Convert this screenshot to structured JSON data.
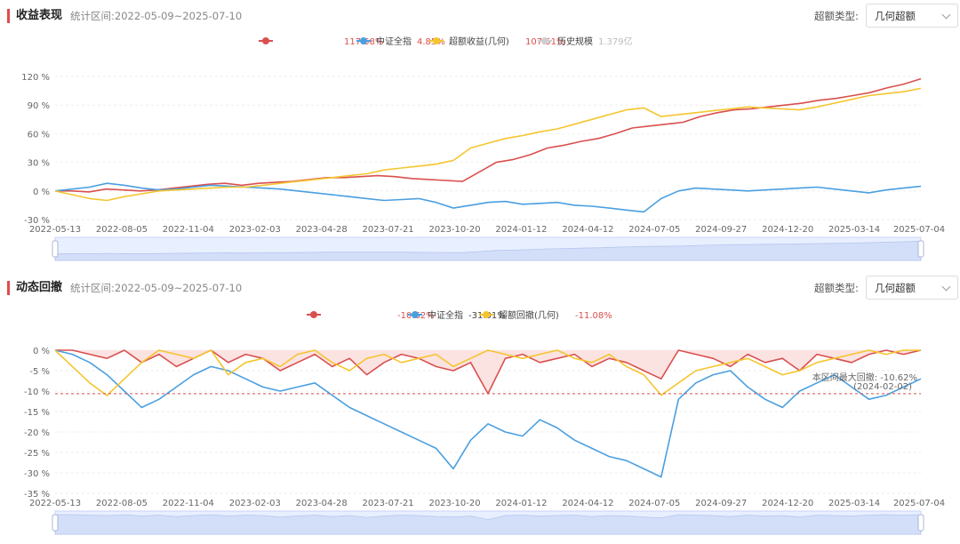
{
  "colors": {
    "fund": "#d9504e",
    "index": "#4a9fe0",
    "excess": "#f5c52e",
    "scale": "#cfcfcf",
    "accent": "#e14b4b"
  },
  "returns_panel": {
    "title": "收益表现",
    "period_label": "统计区间:",
    "period_value": "2022-05-09~2025-07-10",
    "excess_type_label": "超额类型:",
    "excess_type_value": "几何超额",
    "legend": [
      {
        "name": "",
        "value": "117.58%",
        "color": "#d9504e"
      },
      {
        "name": "中证全指",
        "value": "4.85%",
        "color": "#4a9fe0"
      },
      {
        "name": "超额收益(几何)",
        "value": "107.51%",
        "color": "#f5c52e"
      },
      {
        "name": "历史规模",
        "value": "1.379亿",
        "color": "#cfcfcf"
      }
    ]
  },
  "drawdown_panel": {
    "title": "动态回撤",
    "period_label": "统计区间:",
    "period_value": "2022-05-09~2025-07-10",
    "excess_type_label": "超额类型:",
    "excess_type_value": "几何超额",
    "legend": [
      {
        "name": "",
        "value": "-10.62%",
        "color": "#d9504e"
      },
      {
        "name": "中证全指",
        "value": "-31.01%",
        "color": "#4a9fe0"
      },
      {
        "name": "超额回撤(几何)",
        "value": "-11.08%",
        "color": "#f5c52e"
      }
    ],
    "max_dd_label": "本区间最大回撤: -10.62%",
    "max_dd_date": "(2024-02-02)"
  },
  "chart_data": [
    {
      "type": "line",
      "title": "收益表现",
      "x_ticks": [
        "2022-05-13",
        "2022-08-05",
        "2022-11-04",
        "2023-02-03",
        "2023-04-28",
        "2023-07-21",
        "2023-10-20",
        "2024-01-12",
        "2024-04-12",
        "2024-07-05",
        "2024-09-27",
        "2024-12-20",
        "2025-03-14",
        "2025-07-04"
      ],
      "y_ticks": [
        "120 %",
        "90 %",
        "60 %",
        "30 %",
        "0 %",
        "-30 %"
      ],
      "ylim": [
        -30,
        120
      ],
      "series": [
        {
          "name": "",
          "color": "#d9504e",
          "y": [
            0,
            0,
            -1,
            2,
            1,
            0,
            1,
            3,
            5,
            7,
            8,
            6,
            8,
            9,
            10,
            12,
            14,
            14,
            15,
            16,
            15,
            13,
            12,
            11,
            10,
            20,
            30,
            33,
            38,
            45,
            48,
            52,
            55,
            60,
            66,
            68,
            70,
            72,
            78,
            82,
            85,
            86,
            88,
            90,
            92,
            95,
            97,
            100,
            103,
            108,
            112,
            117.58
          ]
        },
        {
          "name": "中证全指",
          "color": "#4a9fe0",
          "y": [
            0,
            2,
            4,
            8,
            6,
            3,
            1,
            2,
            4,
            6,
            5,
            4,
            3,
            2,
            0,
            -2,
            -4,
            -6,
            -8,
            -10,
            -9,
            -8,
            -12,
            -18,
            -15,
            -12,
            -11,
            -14,
            -13,
            -12,
            -15,
            -16,
            -18,
            -20,
            -22,
            -8,
            0,
            3,
            2,
            1,
            0,
            1,
            2,
            3,
            4,
            2,
            0,
            -2,
            1,
            3,
            4.85
          ]
        },
        {
          "name": "超额收益(几何)",
          "color": "#f5c52e",
          "y": [
            0,
            -4,
            -8,
            -10,
            -6,
            -3,
            0,
            1,
            2,
            3,
            4,
            4,
            6,
            8,
            10,
            12,
            14,
            16,
            18,
            22,
            24,
            26,
            28,
            32,
            45,
            50,
            55,
            58,
            62,
            65,
            70,
            75,
            80,
            85,
            87,
            78,
            80,
            82,
            84,
            86,
            88,
            87,
            86,
            85,
            88,
            92,
            96,
            100,
            102,
            104,
            107.51
          ]
        },
        {
          "name": "历史规模",
          "color": "#cfcfcf",
          "y": []
        }
      ]
    },
    {
      "type": "area",
      "title": "动态回撤",
      "x_ticks": [
        "2022-05-13",
        "2022-08-05",
        "2022-11-04",
        "2023-02-03",
        "2023-04-28",
        "2023-07-21",
        "2023-10-20",
        "2024-01-12",
        "2024-04-12",
        "2024-07-05",
        "2024-09-27",
        "2024-12-20",
        "2025-03-14",
        "2025-07-04"
      ],
      "y_ticks": [
        "0 %",
        "-5 %",
        "-10 %",
        "-15 %",
        "-20 %",
        "-25 %",
        "-30 %",
        "-35 %"
      ],
      "ylim": [
        -35,
        0
      ],
      "reference_line": -10.62,
      "series": [
        {
          "name": "",
          "color": "#d9504e",
          "y": [
            0,
            0,
            -1,
            -2,
            0,
            -3,
            -1,
            -4,
            -2,
            0,
            -3,
            -1,
            -2,
            -5,
            -3,
            -1,
            -4,
            -2,
            -6,
            -3,
            -1,
            -2,
            -4,
            -5,
            -3,
            -10.62,
            -2,
            -1,
            -3,
            -2,
            -1,
            -4,
            -2,
            -3,
            -5,
            -7,
            0,
            -1,
            -2,
            -4,
            -1,
            -3,
            -2,
            -5,
            -1,
            -2,
            -3,
            -1,
            0,
            -1,
            0
          ]
        },
        {
          "name": "中证全指",
          "color": "#4a9fe0",
          "y": [
            0,
            -1,
            -3,
            -6,
            -10,
            -14,
            -12,
            -9,
            -6,
            -4,
            -5,
            -7,
            -9,
            -10,
            -9,
            -8,
            -11,
            -14,
            -16,
            -18,
            -20,
            -22,
            -24,
            -29,
            -22,
            -18,
            -20,
            -21,
            -17,
            -19,
            -22,
            -24,
            -26,
            -27,
            -29,
            -31,
            -12,
            -8,
            -6,
            -5,
            -9,
            -12,
            -14,
            -10,
            -8,
            -6,
            -9,
            -12,
            -11,
            -9,
            -7
          ]
        },
        {
          "name": "超额回撤(几何)",
          "color": "#f5c52e",
          "y": [
            0,
            -4,
            -8,
            -11.08,
            -7,
            -3,
            0,
            -1,
            -2,
            0,
            -6,
            -3,
            -2,
            -4,
            -1,
            0,
            -3,
            -5,
            -2,
            -1,
            -3,
            -2,
            -1,
            -4,
            -2,
            0,
            -1,
            -2,
            -1,
            0,
            -2,
            -3,
            -1,
            -4,
            -6,
            -11,
            -8,
            -5,
            -4,
            -3,
            -2,
            -4,
            -6,
            -5,
            -3,
            -2,
            -1,
            0,
            -1,
            0,
            0
          ]
        }
      ]
    }
  ]
}
